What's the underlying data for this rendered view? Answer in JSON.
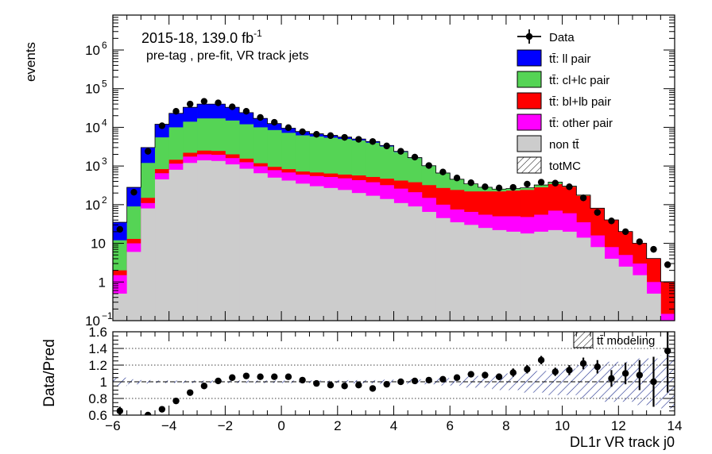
{
  "chart_data": {
    "type": "bar",
    "subtype": "stacked-histogram-log-with-ratio",
    "ylabel": "events",
    "xlabel": "DL1r VR track j0",
    "ratio_ylabel": "Data/Pred",
    "annotation_lumi": "2015-18, 139.0 fb",
    "annotation_lumi_sup": "-1",
    "annotation_sel": "pre-tag ,  pre-fit, VR track jets",
    "xlim": [
      -6,
      14
    ],
    "ylim_log": [
      0.1,
      8000000
    ],
    "ratio_ylim": [
      0.6,
      1.6
    ],
    "x_ticks": [
      "−6",
      "−4",
      "−2",
      "0",
      "2",
      "4",
      "6",
      "8",
      "10",
      "12",
      "14"
    ],
    "y_ticks": [
      {
        "v": 0.1,
        "label": "10",
        "sup": "−1"
      },
      {
        "v": 1,
        "label": "1",
        "sup": ""
      },
      {
        "v": 10,
        "label": "10",
        "sup": ""
      },
      {
        "v": 100,
        "label": "10",
        "sup": "2"
      },
      {
        "v": 1000,
        "label": "10",
        "sup": "3"
      },
      {
        "v": 10000,
        "label": "10",
        "sup": "4"
      },
      {
        "v": 100000,
        "label": "10",
        "sup": "5"
      },
      {
        "v": 1000000,
        "label": "10",
        "sup": "6"
      }
    ],
    "ratio_ticks": [
      "0.6",
      "0.8",
      "1",
      "1.2",
      "1.4",
      "1.6"
    ],
    "ratio_tick_values": [
      0.6,
      0.8,
      1.0,
      1.2,
      1.4,
      1.6
    ],
    "bin_edges": [
      -6,
      -5.5,
      -5,
      -4.5,
      -4,
      -3.5,
      -3,
      -2.5,
      -2,
      -1.5,
      -1,
      -0.5,
      0,
      0.5,
      1,
      1.5,
      2,
      2.5,
      3,
      3.5,
      4,
      4.5,
      5,
      5.5,
      6,
      6.5,
      7,
      7.5,
      8,
      8.5,
      9,
      9.5,
      10,
      10.5,
      11,
      11.5,
      12,
      12.5,
      13,
      13.5,
      14
    ],
    "legend": [
      {
        "label": "Data",
        "style": "marker"
      },
      {
        "label": "tt̄: ll pair",
        "color": "#0000ff"
      },
      {
        "label": "tt̄: cl+lc pair",
        "color": "#55d455"
      },
      {
        "label": "tt̄: bl+lb pair",
        "color": "#ff0000"
      },
      {
        "label": "tt̄: other pair",
        "color": "#ff00ff"
      },
      {
        "label": "non tt̄",
        "color": "#cccccc"
      },
      {
        "label": "totMC",
        "style": "hatch"
      }
    ],
    "ratio_legend": "tt̄ modeling",
    "cumulative_series": [
      {
        "name": "non tt̄",
        "color": "#cccccc",
        "values": [
          0.5,
          6,
          80,
          450,
          800,
          1200,
          1400,
          1350,
          1100,
          850,
          650,
          500,
          420,
          350,
          300,
          270,
          240,
          200,
          170,
          140,
          110,
          90,
          65,
          45,
          35,
          30,
          25,
          22,
          20,
          18,
          20,
          22,
          20,
          14,
          8,
          4,
          2.5,
          1.5,
          0.5,
          0.1
        ]
      },
      {
        "name": "tt̄: other pair",
        "color": "#ff00ff",
        "values": [
          1.5,
          10,
          110,
          650,
          1150,
          1750,
          2000,
          1950,
          1600,
          1250,
          980,
          780,
          680,
          600,
          550,
          520,
          480,
          430,
          380,
          320,
          260,
          210,
          150,
          100,
          75,
          65,
          55,
          50,
          50,
          48,
          55,
          70,
          60,
          35,
          16,
          8,
          5,
          3,
          1,
          0.15
        ]
      },
      {
        "name": "tt̄: bl+lb pair",
        "color": "#ff0000",
        "values": [
          2,
          13,
          150,
          830,
          1450,
          2200,
          2500,
          2450,
          2000,
          1550,
          1180,
          950,
          830,
          720,
          680,
          640,
          600,
          570,
          520,
          470,
          420,
          380,
          320,
          270,
          240,
          220,
          220,
          220,
          230,
          240,
          280,
          340,
          290,
          170,
          80,
          40,
          20,
          10,
          4,
          1
        ]
      },
      {
        "name": "tt̄: cl+lc pair",
        "color": "#55d455",
        "values": [
          12,
          90,
          1200,
          5500,
          10000,
          14000,
          17000,
          17000,
          15000,
          12000,
          10000,
          8500,
          7200,
          6200,
          5800,
          5400,
          5000,
          4600,
          4000,
          3200,
          2300,
          1600,
          1000,
          650,
          450,
          340,
          280,
          250,
          260,
          270,
          320,
          380,
          300,
          175,
          80,
          40,
          20,
          10,
          4,
          1
        ]
      },
      {
        "name": "tt̄: ll pair",
        "color": "#0000ff",
        "values": [
          35,
          280,
          3000,
          12000,
          23000,
          33000,
          40000,
          40000,
          33000,
          24000,
          17000,
          12500,
          9500,
          7800,
          6800,
          6200,
          5600,
          5000,
          4300,
          3400,
          2400,
          1650,
          1020,
          660,
          455,
          345,
          283,
          253,
          262,
          273,
          323,
          384,
          303,
          177,
          81,
          40.5,
          20.2,
          10.1,
          4.05,
          1.02
        ]
      }
    ],
    "data_points": [
      {
        "x": -5.75,
        "y": 23
      },
      {
        "x": -5.25,
        "y": 210
      },
      {
        "x": -4.75,
        "y": 2400
      },
      {
        "x": -4.25,
        "y": 11000
      },
      {
        "x": -3.75,
        "y": 26000
      },
      {
        "x": -3.25,
        "y": 40000
      },
      {
        "x": -2.75,
        "y": 47000
      },
      {
        "x": -2.25,
        "y": 43000
      },
      {
        "x": -1.75,
        "y": 34000
      },
      {
        "x": -1.25,
        "y": 26000
      },
      {
        "x": -0.75,
        "y": 18000
      },
      {
        "x": -0.25,
        "y": 13500
      },
      {
        "x": 0.25,
        "y": 9800
      },
      {
        "x": 0.75,
        "y": 7700
      },
      {
        "x": 1.25,
        "y": 6600
      },
      {
        "x": 1.75,
        "y": 6100
      },
      {
        "x": 2.25,
        "y": 5500
      },
      {
        "x": 2.75,
        "y": 4900
      },
      {
        "x": 3.25,
        "y": 4300
      },
      {
        "x": 3.75,
        "y": 3300
      },
      {
        "x": 4.25,
        "y": 2400
      },
      {
        "x": 4.75,
        "y": 1700
      },
      {
        "x": 5.25,
        "y": 1030
      },
      {
        "x": 5.75,
        "y": 700
      },
      {
        "x": 6.25,
        "y": 490
      },
      {
        "x": 6.75,
        "y": 370
      },
      {
        "x": 7.25,
        "y": 290
      },
      {
        "x": 7.75,
        "y": 270
      },
      {
        "x": 8.25,
        "y": 280
      },
      {
        "x": 8.75,
        "y": 340
      },
      {
        "x": 9.25,
        "y": 380
      },
      {
        "x": 9.75,
        "y": 360
      },
      {
        "x": 10.25,
        "y": 290
      },
      {
        "x": 10.75,
        "y": 150
      },
      {
        "x": 11.25,
        "y": 63
      },
      {
        "x": 11.75,
        "y": 38
      },
      {
        "x": 12.25,
        "y": 20
      },
      {
        "x": 12.75,
        "y": 11
      },
      {
        "x": 13.25,
        "y": 7
      },
      {
        "x": 13.75,
        "y": 2.8
      }
    ],
    "ratio_points": [
      {
        "x": -5.75,
        "y": 0.65,
        "err": 0.05
      },
      {
        "x": -4.75,
        "y": 0.6,
        "err": 0.01
      },
      {
        "x": -4.25,
        "y": 0.67,
        "err": 0.01
      },
      {
        "x": -3.75,
        "y": 0.77,
        "err": 0.01
      },
      {
        "x": -3.25,
        "y": 0.87,
        "err": 0.01
      },
      {
        "x": -2.75,
        "y": 0.95,
        "err": 0.01
      },
      {
        "x": -2.25,
        "y": 1.01,
        "err": 0.01
      },
      {
        "x": -1.75,
        "y": 1.05,
        "err": 0.01
      },
      {
        "x": -1.25,
        "y": 1.07,
        "err": 0.01
      },
      {
        "x": -0.75,
        "y": 1.06,
        "err": 0.01
      },
      {
        "x": -0.25,
        "y": 1.06,
        "err": 0.01
      },
      {
        "x": 0.25,
        "y": 1.06,
        "err": 0.01
      },
      {
        "x": 0.75,
        "y": 1.02,
        "err": 0.01
      },
      {
        "x": 1.25,
        "y": 0.98,
        "err": 0.01
      },
      {
        "x": 1.75,
        "y": 0.96,
        "err": 0.01
      },
      {
        "x": 2.25,
        "y": 0.95,
        "err": 0.01
      },
      {
        "x": 2.75,
        "y": 0.96,
        "err": 0.01
      },
      {
        "x": 3.25,
        "y": 0.92,
        "err": 0.01
      },
      {
        "x": 3.75,
        "y": 0.97,
        "err": 0.01
      },
      {
        "x": 4.25,
        "y": 1.0,
        "err": 0.01
      },
      {
        "x": 4.75,
        "y": 1.01,
        "err": 0.01
      },
      {
        "x": 5.25,
        "y": 1.02,
        "err": 0.02
      },
      {
        "x": 5.75,
        "y": 1.03,
        "err": 0.02
      },
      {
        "x": 6.25,
        "y": 1.05,
        "err": 0.03
      },
      {
        "x": 6.75,
        "y": 1.09,
        "err": 0.03
      },
      {
        "x": 7.25,
        "y": 1.08,
        "err": 0.04
      },
      {
        "x": 7.75,
        "y": 1.06,
        "err": 0.04
      },
      {
        "x": 8.25,
        "y": 1.11,
        "err": 0.05
      },
      {
        "x": 8.75,
        "y": 1.15,
        "err": 0.05
      },
      {
        "x": 9.25,
        "y": 1.26,
        "err": 0.05
      },
      {
        "x": 9.75,
        "y": 1.12,
        "err": 0.05
      },
      {
        "x": 10.25,
        "y": 1.14,
        "err": 0.06
      },
      {
        "x": 10.75,
        "y": 1.22,
        "err": 0.07
      },
      {
        "x": 11.25,
        "y": 1.18,
        "err": 0.08
      },
      {
        "x": 11.75,
        "y": 1.04,
        "err": 0.1
      },
      {
        "x": 12.25,
        "y": 1.1,
        "err": 0.13
      },
      {
        "x": 12.75,
        "y": 1.08,
        "err": 0.18
      },
      {
        "x": 13.25,
        "y": 1.0,
        "err": 0.3
      },
      {
        "x": 13.75,
        "y": 1.37,
        "err": 0.5
      }
    ],
    "uncertainty_band": [
      {
        "x0": -6,
        "x1": -5.5,
        "lo": 0.95,
        "hi": 1.05
      },
      {
        "x0": -5.5,
        "x1": -5,
        "lo": 0.97,
        "hi": 1.03
      },
      {
        "x0": -5,
        "x1": -4.5,
        "lo": 0.98,
        "hi": 1.02
      },
      {
        "x0": -4.5,
        "x1": 2,
        "lo": 0.985,
        "hi": 1.015
      },
      {
        "x0": 2,
        "x1": 3.5,
        "lo": 0.98,
        "hi": 1.02
      },
      {
        "x0": 3.5,
        "x1": 4.5,
        "lo": 0.975,
        "hi": 1.025
      },
      {
        "x0": 4.5,
        "x1": 5.5,
        "lo": 0.97,
        "hi": 1.03
      },
      {
        "x0": 5.5,
        "x1": 6.5,
        "lo": 0.955,
        "hi": 1.045
      },
      {
        "x0": 6.5,
        "x1": 7.5,
        "lo": 0.93,
        "hi": 1.07
      },
      {
        "x0": 7.5,
        "x1": 8.5,
        "lo": 0.9,
        "hi": 1.1
      },
      {
        "x0": 8.5,
        "x1": 9.5,
        "lo": 0.87,
        "hi": 1.13
      },
      {
        "x0": 9.5,
        "x1": 10.5,
        "lo": 0.84,
        "hi": 1.16
      },
      {
        "x0": 10.5,
        "x1": 11.5,
        "lo": 0.8,
        "hi": 1.2
      },
      {
        "x0": 11.5,
        "x1": 12.5,
        "lo": 0.76,
        "hi": 1.24
      },
      {
        "x0": 12.5,
        "x1": 13.5,
        "lo": 0.72,
        "hi": 1.28
      },
      {
        "x0": 13.5,
        "x1": 14,
        "lo": 0.68,
        "hi": 1.32
      }
    ]
  }
}
